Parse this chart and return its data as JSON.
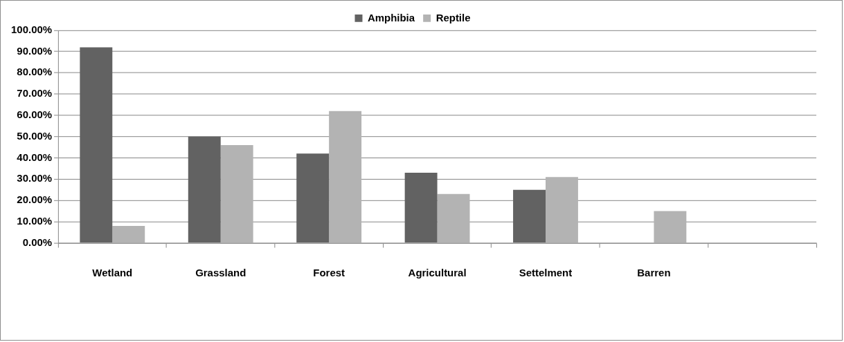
{
  "chart_data": {
    "type": "bar",
    "categories": [
      "Wetland",
      "Grassland",
      "Forest",
      "Agricultural",
      "Settelment",
      "Barren",
      null
    ],
    "series": [
      {
        "name": "Amphibia",
        "color": "#626262",
        "values": [
          92,
          50,
          42,
          33,
          25,
          0,
          null
        ]
      },
      {
        "name": "Reptile",
        "color": "#b3b3b3",
        "values": [
          8,
          46,
          62,
          23,
          31,
          15,
          null
        ]
      }
    ],
    "ylim": [
      0,
      100
    ],
    "yticks": [
      {
        "value": 0,
        "label": "0.00%"
      },
      {
        "value": 10,
        "label": "10.00%"
      },
      {
        "value": 20,
        "label": "20.00%"
      },
      {
        "value": 30,
        "label": "30.00%"
      },
      {
        "value": 40,
        "label": "40.00%"
      },
      {
        "value": 50,
        "label": "50.00%"
      },
      {
        "value": 60,
        "label": "60.00%"
      },
      {
        "value": 70,
        "label": "70.00%"
      },
      {
        "value": 80,
        "label": "80.00%"
      },
      {
        "value": 90,
        "label": "90.00%"
      },
      {
        "value": 100,
        "label": "100.00%"
      }
    ],
    "grid": "y",
    "legend": "top"
  }
}
